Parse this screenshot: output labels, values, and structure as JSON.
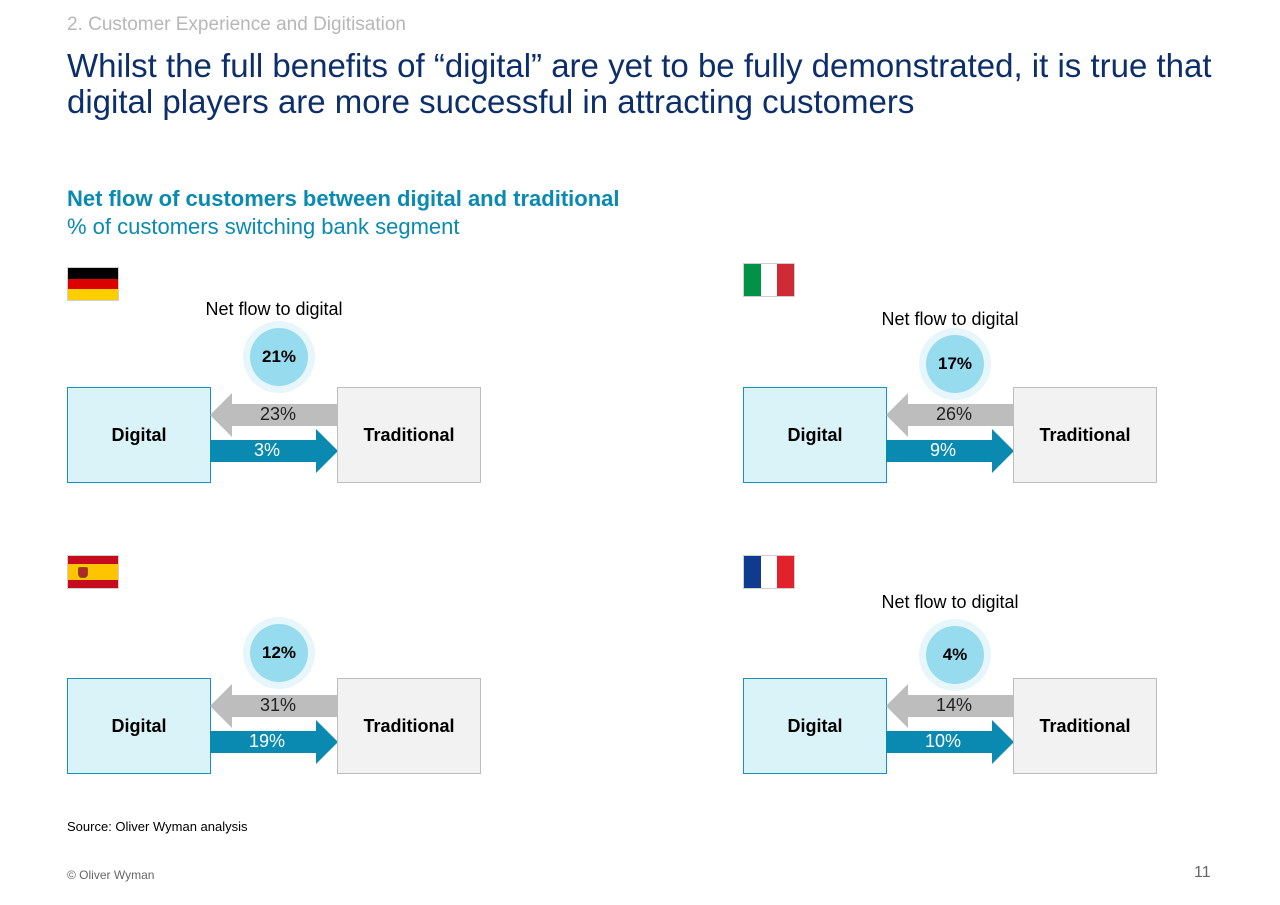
{
  "header": {
    "section": "2. Customer Experience and Digitisation",
    "title": "Whilst the full benefits of “digital” are yet to be fully demonstrated, it is true that digital players are more successful in attracting customers"
  },
  "chart_heading": {
    "title": "Net flow of customers between digital and traditional",
    "subtitle": "% of customers switching bank segment"
  },
  "colors": {
    "digital_box": "#daf3f9",
    "digital_border": "#1990bf",
    "traditional_box": "#f2f2f2",
    "arrow_in": "#bdbdbd",
    "arrow_out": "#0a8ab1",
    "bubble": "#97dbee",
    "title": "#0c2e6b",
    "accent": "#0a8ab1"
  },
  "panels": [
    {
      "flag": "germany-flag",
      "net_label": "Net flow to digital",
      "net": "21%",
      "digital_label": "Digital",
      "traditional_label": "Traditional",
      "to_digital": "23%",
      "to_traditional": "3%"
    },
    {
      "flag": "italy-flag",
      "net_label": "Net flow to digital",
      "net": "17%",
      "digital_label": "Digital",
      "traditional_label": "Traditional",
      "to_digital": "26%",
      "to_traditional": "9%"
    },
    {
      "flag": "spain-flag",
      "net_label": "",
      "net": "12%",
      "digital_label": "Digital",
      "traditional_label": "Traditional",
      "to_digital": "31%",
      "to_traditional": "19%"
    },
    {
      "flag": "france-flag",
      "net_label": "Net flow to digital",
      "net": "4%",
      "digital_label": "Digital",
      "traditional_label": "Traditional",
      "to_digital": "14%",
      "to_traditional": "10%"
    }
  ],
  "footer": {
    "source": "Source: Oliver Wyman analysis",
    "copyright": "© Oliver Wyman",
    "page_number": "11"
  }
}
